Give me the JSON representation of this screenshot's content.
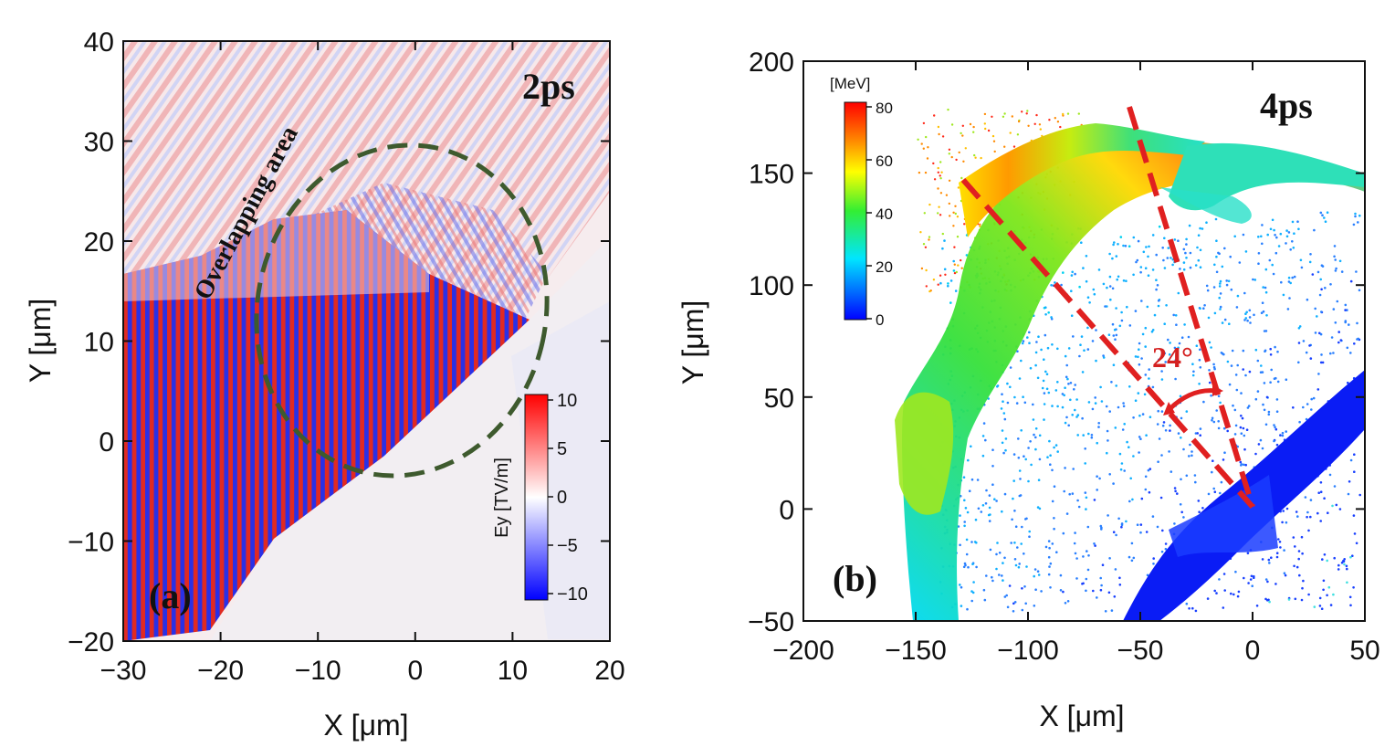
{
  "chart_data": [
    {
      "type": "heatmap",
      "panel_label": "(a)",
      "time_label": "2ps",
      "xlabel": "X [μm]",
      "ylabel": "Y [μm]",
      "xlim": [
        -30,
        20
      ],
      "ylim": [
        -20,
        40
      ],
      "xticks": [
        "−30",
        "−20",
        "−10",
        "0",
        "10",
        "20"
      ],
      "yticks": [
        "−20",
        "−10",
        "0",
        "10",
        "20",
        "30",
        "40"
      ],
      "annotation": "Overlapping area",
      "colorbar": {
        "label": "Ey [TV/m]",
        "range": [
          -10,
          10
        ],
        "ticks": [
          "10",
          "5",
          "0",
          "−5",
          "−10"
        ]
      }
    },
    {
      "type": "scatter",
      "panel_label": "(b)",
      "time_label": "4ps",
      "xlabel": "X [μm]",
      "ylabel": "Y [μm]",
      "xlim": [
        -200,
        50
      ],
      "ylim": [
        -50,
        200
      ],
      "xticks": [
        "−200",
        "−150",
        "−100",
        "−50",
        "0",
        "50"
      ],
      "yticks": [
        "−50",
        "0",
        "50",
        "100",
        "150",
        "200"
      ],
      "angle_annotation": "24°",
      "colorbar": {
        "title": "[MeV]",
        "range": [
          0,
          80
        ],
        "ticks": [
          "80",
          "60",
          "40",
          "20",
          "0"
        ]
      }
    }
  ],
  "colors": {
    "red": "#e8231e",
    "blue": "#1a2cf0",
    "dashed_ellipse": "#3e5a2e",
    "dashed_lines": "#e02020",
    "angle_text": "#d42020"
  }
}
